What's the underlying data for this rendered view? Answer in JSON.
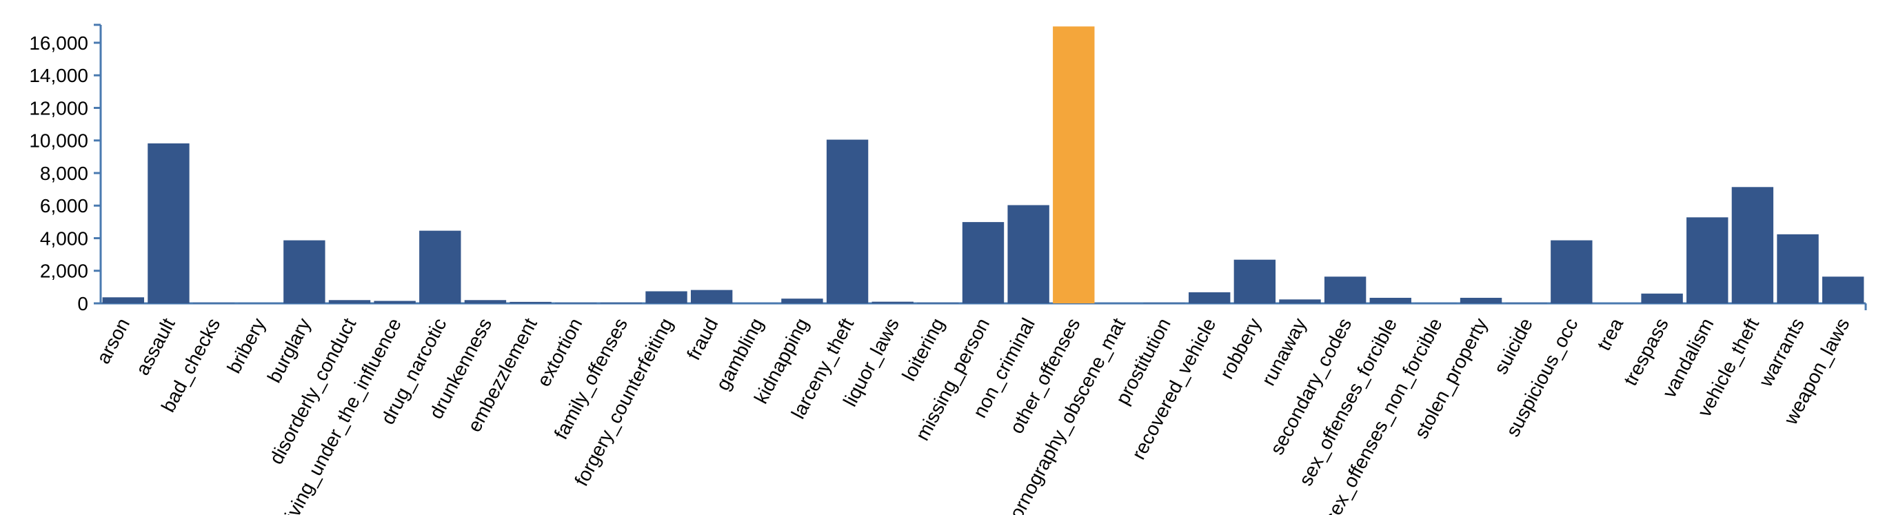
{
  "chart_data": {
    "type": "bar",
    "categories": [
      "arson",
      "assault",
      "bad_checks",
      "bribery",
      "burglary",
      "disorderly_conduct",
      "driving_under_the_influence",
      "drug_narcotic",
      "drunkenness",
      "embezzlement",
      "extortion",
      "family_offenses",
      "forgery_counterfeiting",
      "fraud",
      "gambling",
      "kidnapping",
      "larceny_theft",
      "liquor_laws",
      "loitering",
      "missing_person",
      "non_criminal",
      "other_offenses",
      "pornography_obscene_mat",
      "prostitution",
      "recovered_vehicle",
      "robbery",
      "runaway",
      "secondary_codes",
      "sex_offenses_forcible",
      "sex_offenses_non_forcible",
      "stolen_property",
      "suicide",
      "suspicious_occ",
      "trea",
      "trespass",
      "vandalism",
      "vehicle_theft",
      "warrants",
      "weapon_laws"
    ],
    "values": [
      370,
      9820,
      20,
      10,
      3870,
      200,
      150,
      4460,
      200,
      90,
      30,
      40,
      740,
      820,
      5,
      290,
      10050,
      100,
      30,
      4990,
      6030,
      17000,
      5,
      20,
      680,
      2680,
      240,
      1640,
      340,
      10,
      340,
      20,
      3870,
      1,
      600,
      5280,
      7140,
      4240,
      1640
    ],
    "colors": [
      "#34568b",
      "#34568b",
      "#34568b",
      "#34568b",
      "#34568b",
      "#34568b",
      "#34568b",
      "#34568b",
      "#34568b",
      "#34568b",
      "#34568b",
      "#34568b",
      "#34568b",
      "#34568b",
      "#34568b",
      "#34568b",
      "#34568b",
      "#34568b",
      "#34568b",
      "#34568b",
      "#34568b",
      "#f4a63b",
      "#34568b",
      "#34568b",
      "#34568b",
      "#34568b",
      "#34568b",
      "#34568b",
      "#34568b",
      "#34568b",
      "#34568b",
      "#34568b",
      "#34568b",
      "#34568b",
      "#34568b",
      "#34568b",
      "#34568b",
      "#34568b",
      "#34568b"
    ],
    "ylim": [
      0,
      17100
    ],
    "yticks": [
      0,
      {
        "value": 2000,
        "label": "2,000"
      },
      {
        "value": 4000,
        "label": "4,000"
      },
      {
        "value": 6000,
        "label": "6,000"
      },
      {
        "value": 8000,
        "label": "8,000"
      },
      {
        "value": 10000,
        "label": "10,000"
      },
      {
        "value": 12000,
        "label": "12,000"
      },
      {
        "value": 14000,
        "label": "14,000"
      },
      {
        "value": 16000,
        "label": "16,000"
      }
    ],
    "grid": false
  }
}
